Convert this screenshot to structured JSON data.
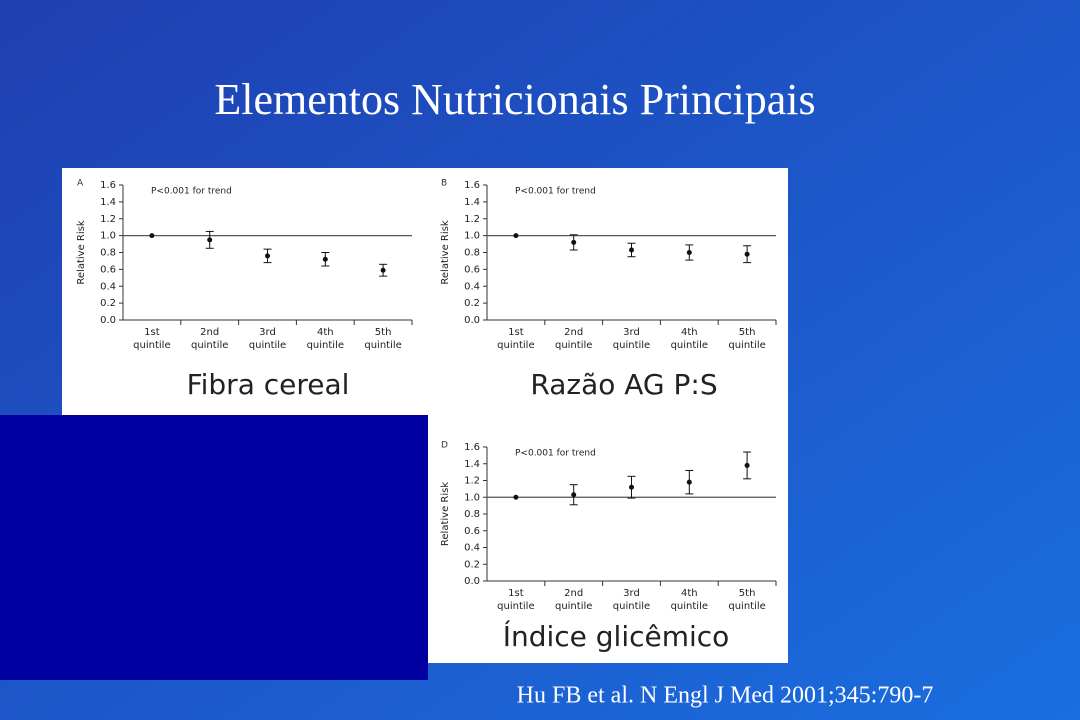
{
  "title": "Elementos Nutricionais Principais",
  "citation": "Hu FB et al. N Engl J Med 2001;345:790-7",
  "chart_data": [
    {
      "type": "errorbar",
      "panel": "A",
      "annotation": "P<0.001 for trend",
      "ylabel": "Relative Risk",
      "caption": "Fibra cereal",
      "categories": [
        "1st quintile",
        "2nd quintile",
        "3rd quintile",
        "4th quintile",
        "5th quintile"
      ],
      "values": [
        1.0,
        0.95,
        0.76,
        0.72,
        0.59
      ],
      "errors": [
        null,
        0.1,
        0.08,
        0.08,
        0.07
      ],
      "ylim": [
        0,
        1.6
      ],
      "yticks": [
        {
          "value": 0,
          "label": "0.0"
        },
        0.2,
        0.4,
        0.6,
        0.8,
        {
          "value": 1,
          "label": "1.0"
        },
        1.2,
        1.4,
        1.6
      ],
      "reference_line": 1.0,
      "color": "#111111"
    },
    {
      "type": "errorbar",
      "panel": "B",
      "annotation": "P<0.001 for trend",
      "ylabel": "Relative Risk",
      "caption": "Razão AG P:S",
      "categories": [
        "1st quintile",
        "2nd quintile",
        "3rd quintile",
        "4th quintile",
        "5th quintile"
      ],
      "values": [
        1.0,
        0.92,
        0.83,
        0.8,
        0.78
      ],
      "errors": [
        null,
        0.09,
        0.08,
        0.09,
        0.1
      ],
      "ylim": [
        0,
        1.6
      ],
      "yticks": [
        {
          "value": 0,
          "label": "0.0"
        },
        0.2,
        0.4,
        0.6,
        0.8,
        {
          "value": 1,
          "label": "1.0"
        },
        1.2,
        1.4,
        1.6
      ],
      "reference_line": 1.0,
      "color": "#111111"
    },
    {
      "type": "errorbar",
      "panel": "D",
      "annotation": "P<0.001 for trend",
      "ylabel": "Relative Risk",
      "caption": "Índice glicêmico",
      "categories": [
        "1st quintile",
        "2nd quintile",
        "3rd quintile",
        "4th quintile",
        "5th quintile"
      ],
      "values": [
        1.0,
        1.03,
        1.12,
        1.18,
        1.38
      ],
      "errors": [
        null,
        0.12,
        0.13,
        0.14,
        0.16
      ],
      "ylim": [
        0,
        1.6
      ],
      "yticks": [
        {
          "value": 0,
          "label": "0.0"
        },
        0.2,
        0.4,
        0.6,
        0.8,
        {
          "value": 1,
          "label": "1.0"
        },
        1.2,
        1.4,
        1.6
      ],
      "reference_line": 1.0,
      "color": "#111111"
    }
  ]
}
